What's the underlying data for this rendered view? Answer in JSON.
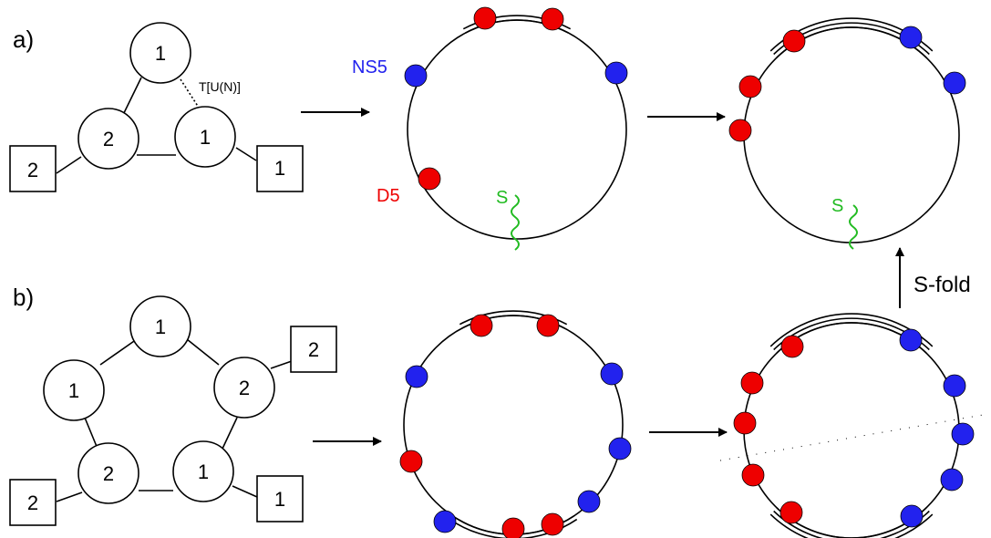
{
  "colors": {
    "d5": "#ee0000",
    "ns5": "#2222ee",
    "sduality": "#22bb22",
    "line": "#000000"
  },
  "panel_a": {
    "label": "a)",
    "quiver": {
      "gauge_nodes": [
        "1",
        "2",
        "1"
      ],
      "flavor_nodes": [
        "2",
        "1"
      ],
      "tuN_label": "T[U(N)]"
    },
    "brane_labels": {
      "ns5": "NS5",
      "d5": "D5",
      "s": "S"
    },
    "s_label_2": "S"
  },
  "panel_b": {
    "label": "b)",
    "quiver": {
      "gauge_nodes": [
        "1",
        "1",
        "2",
        "2",
        "1"
      ],
      "flavor_nodes": [
        "2",
        "2",
        "1"
      ]
    }
  },
  "sfold_label": "S-fold"
}
